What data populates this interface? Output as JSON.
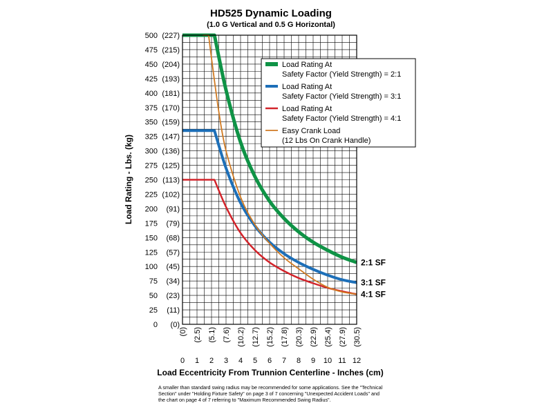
{
  "chart_data": {
    "type": "line",
    "title": "HD525 Dynamic Loading",
    "subtitle": "(1.0 G Vertical and 0.5 G Horizontal)",
    "xlabel": "Load Eccentricity From Trunnion Centerline - Inches (cm)",
    "ylabel": "Load Rating - Lbs. (kg)",
    "xlim": [
      0,
      12
    ],
    "ylim": [
      0,
      500
    ],
    "grid": true,
    "x_ticks": [
      0,
      1,
      2,
      3,
      4,
      5,
      6,
      7,
      8,
      9,
      10,
      11,
      12
    ],
    "x_tick_labels": [
      "0",
      "1",
      "2",
      "3",
      "4",
      "5",
      "6",
      "7",
      "8",
      "9",
      "10",
      "11",
      "12"
    ],
    "x_tick_labels_cm": [
      "(0)",
      "(2.5)",
      "(5.1)",
      "(7.6)",
      "(10.2)",
      "(12.7)",
      "(15.2)",
      "(17.8)",
      "(20.3)",
      "(22.9)",
      "(25.4)",
      "(27.9)",
      "(30.5)"
    ],
    "y_ticks": [
      0,
      25,
      50,
      75,
      100,
      125,
      150,
      175,
      200,
      225,
      250,
      275,
      300,
      325,
      350,
      375,
      400,
      425,
      450,
      475,
      500
    ],
    "y_tick_labels": [
      "0",
      "25",
      "50",
      "75",
      "100",
      "125",
      "150",
      "175",
      "200",
      "225",
      "250",
      "275",
      "300",
      "325",
      "350",
      "375",
      "400",
      "425",
      "450",
      "475",
      "500"
    ],
    "y_tick_labels_kg": [
      "(0)",
      "(11)",
      "(23)",
      "(34)",
      "(45)",
      "(57)",
      "(68)",
      "(79)",
      "(91)",
      "(102)",
      "(113)",
      "(125)",
      "(136)",
      "(147)",
      "(159)",
      "(170)",
      "(181)",
      "(193)",
      "(204)",
      "(215)",
      "(227)"
    ],
    "legend_position": "top-right",
    "series": [
      {
        "name": "Load Rating At",
        "name_line2": "Safety Factor (Yield Strength) = 2:1",
        "end_label": "2:1 SF",
        "color": "#0f9346",
        "x": [
          0,
          1,
          2.2,
          3,
          4,
          5,
          6,
          7,
          8,
          9,
          10,
          11,
          12
        ],
        "y": [
          500,
          500,
          500,
          405,
          315,
          255,
          213,
          183,
          160,
          142,
          128,
          116,
          107
        ]
      },
      {
        "name": "Load Rating At",
        "name_line2": "Safety Factor (Yield Strength) = 3:1",
        "end_label": "3:1 SF",
        "color": "#1d6fb8",
        "x": [
          0,
          1,
          2.2,
          3,
          4,
          5,
          6,
          7,
          8,
          9,
          10,
          11,
          12
        ],
        "y": [
          335,
          335,
          335,
          270,
          210,
          170,
          142,
          122,
          107,
          95,
          85,
          77,
          72
        ]
      },
      {
        "name": "Load Rating At",
        "name_line2": "Safety Factor (Yield Strength) = 4:1",
        "end_label": "4:1 SF",
        "color": "#d2232a",
        "x": [
          0,
          1,
          2.2,
          3,
          4,
          5,
          6,
          7,
          8,
          9,
          10,
          11,
          12
        ],
        "y": [
          250,
          250,
          250,
          203,
          158,
          128,
          107,
          92,
          80,
          71,
          63,
          57,
          52
        ]
      },
      {
        "name": "Easy Crank Load",
        "name_line2": "(12 Lbs On Crank Handle)",
        "end_label": "",
        "color": "#d07a22",
        "x": [
          1.4,
          1.8,
          2.0,
          2.5,
          3,
          4,
          5,
          6,
          7,
          8,
          9,
          10,
          11,
          12
        ],
        "y": [
          500,
          500,
          460,
          368,
          300,
          220,
          172,
          140,
          115,
          96,
          78,
          64,
          56,
          52
        ]
      }
    ]
  },
  "footnote": {
    "lines": [
      "A smaller than standard swing radius may be recommended for some applications. See the \"Technical",
      "Section\" under \"Holding Fixture Safety\" on page 3 of 7 concerning \"Unexpected Accident Loads\" and",
      "the chart on page 4 of 7 referring to \"Maximum Recommended Swing Radius\"."
    ]
  }
}
